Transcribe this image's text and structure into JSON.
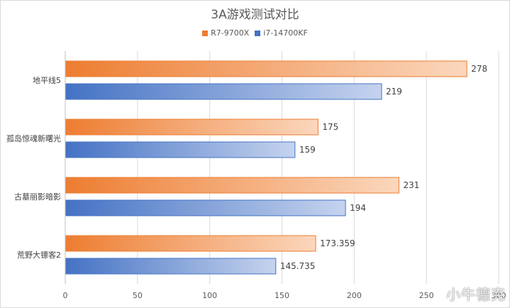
{
  "chart_data": {
    "type": "bar",
    "orientation": "horizontal",
    "title": "3A游戏测试对比",
    "categories": [
      "地平线5",
      "孤岛惊魂新曙光",
      "古墓丽影暗影",
      "荒野大镖客2"
    ],
    "series": [
      {
        "name": "R7-9700X",
        "color": "#ED7D31",
        "values": [
          278,
          175,
          231,
          173.359
        ],
        "labels": [
          "278",
          "175",
          "231",
          "173.359"
        ]
      },
      {
        "name": "i7-14700KF",
        "color": "#4472C4",
        "values": [
          219,
          159,
          194,
          145.735
        ],
        "labels": [
          "219",
          "159",
          "194",
          "145.735"
        ]
      }
    ],
    "xlim": [
      0,
      300
    ],
    "xticks": [
      "0",
      "50",
      "100",
      "150",
      "200",
      "250",
      "300"
    ],
    "grid": true,
    "legend": "top-center"
  },
  "watermark": "小牛德克"
}
